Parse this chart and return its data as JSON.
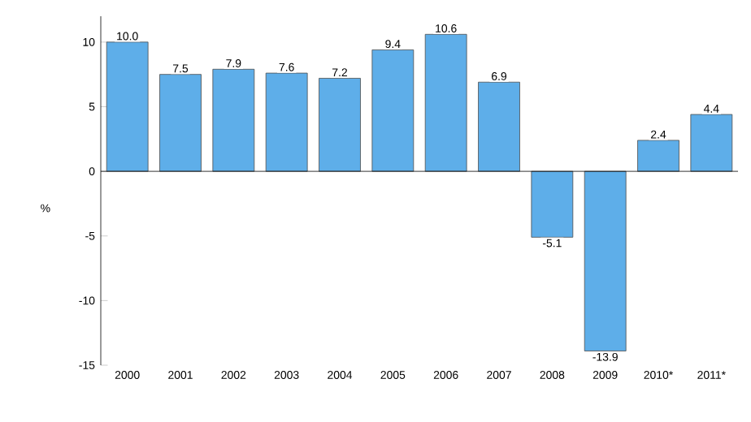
{
  "chart_data": {
    "type": "bar",
    "ylabel": "%",
    "categories": [
      "2000",
      "2001",
      "2002",
      "2003",
      "2004",
      "2005",
      "2006",
      "2007",
      "2008",
      "2009",
      "2010*",
      "2011*"
    ],
    "values": [
      10.0,
      7.5,
      7.9,
      7.6,
      7.2,
      9.4,
      10.6,
      6.9,
      -5.1,
      -13.9,
      2.4,
      4.4
    ],
    "color": "#5eaee9",
    "value_labels": [
      "10.0",
      "7.5",
      "7.9",
      "7.6",
      "7.2",
      "9.4",
      "10.6",
      "6.9",
      "-5.1",
      "-13.9",
      "2.4",
      "4.4"
    ],
    "ylim": [
      -15,
      12
    ],
    "yticks": [
      -15,
      -10,
      -5,
      0,
      5,
      10
    ],
    "ref_lines": [
      {
        "axis": "y",
        "value": 0,
        "color": "#000000"
      }
    ],
    "grid": false
  }
}
